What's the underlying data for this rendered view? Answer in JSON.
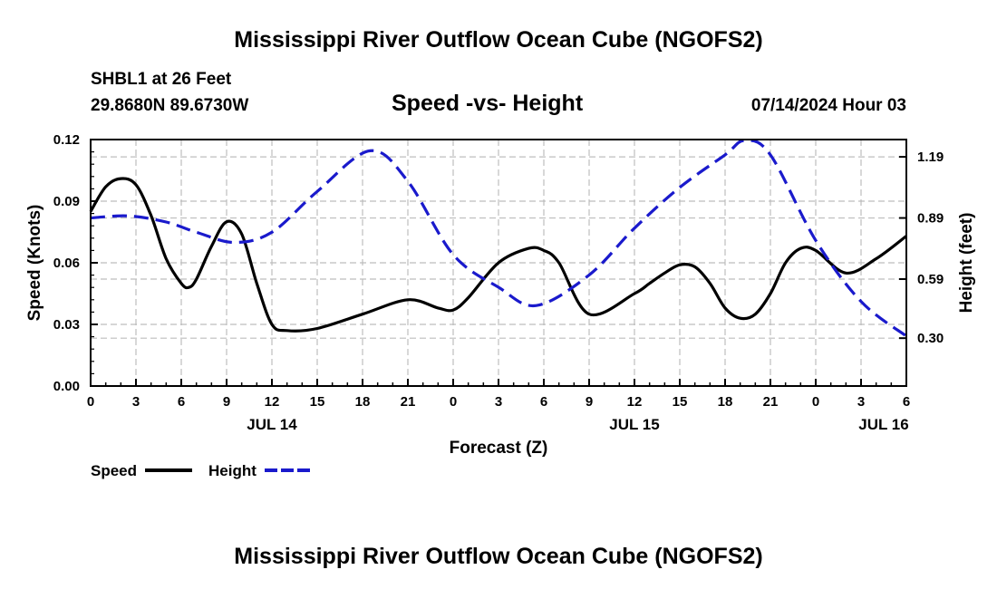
{
  "page": {
    "title_top": "Mississippi River Outflow Ocean Cube (NGOFS2)",
    "title_bottom": "Mississippi River Outflow Ocean Cube (NGOFS2)",
    "station": "SHBL1 at 26 Feet",
    "coords": "29.8680N  89.6730W",
    "subtitle": "Speed -vs- Height",
    "datetime": "07/14/2024 Hour 03"
  },
  "chart_data": {
    "type": "line",
    "xlabel": "Forecast (Z)",
    "ylabel": "Speed (Knots)",
    "y2label": "Height (feet)",
    "xlim": [
      0,
      54
    ],
    "ylim": [
      0,
      0.12
    ],
    "y2lim": [
      0.065,
      1.275
    ],
    "x_ticks": [
      0,
      3,
      6,
      9,
      12,
      15,
      18,
      21,
      24,
      27,
      30,
      33,
      36,
      39,
      42,
      45,
      48,
      51,
      54
    ],
    "x_tick_labels": [
      "0",
      "3",
      "6",
      "9",
      "12",
      "15",
      "18",
      "21",
      "0",
      "3",
      "6",
      "9",
      "12",
      "15",
      "18",
      "21",
      "0",
      "3",
      "6"
    ],
    "date_labels": [
      {
        "x": 12,
        "label": "JUL 14"
      },
      {
        "x": 36,
        "label": "JUL 15"
      },
      {
        "x": 52.5,
        "label": "JUL 16"
      }
    ],
    "y_ticks": [
      0,
      0.03,
      0.06,
      0.09,
      0.12
    ],
    "y_tick_labels": [
      "0.00",
      "0.03",
      "0.06",
      "0.09",
      "0.12"
    ],
    "y2_ticks": [
      0.3,
      0.59,
      0.89,
      1.19
    ],
    "y2_tick_labels": [
      "0.30",
      "0.59",
      "0.89",
      "1.19"
    ],
    "legend": [
      {
        "name": "Speed",
        "color": "#000000",
        "dash": "solid"
      },
      {
        "name": "Height",
        "color": "#1a1acc",
        "dash": "dashed"
      }
    ],
    "series": [
      {
        "name": "Speed",
        "axis": "left",
        "color": "#000000",
        "x": [
          0,
          1,
          2,
          3,
          4,
          5,
          6,
          6.5,
          7,
          8,
          9,
          10,
          11,
          12,
          13,
          15,
          18,
          21,
          23,
          24,
          25,
          27,
          29,
          30,
          31,
          33,
          36,
          37,
          38,
          39,
          40,
          41,
          42,
          43,
          44,
          45,
          46,
          47,
          48,
          50,
          52,
          54
        ],
        "y": [
          0.085,
          0.097,
          0.101,
          0.098,
          0.083,
          0.062,
          0.05,
          0.048,
          0.052,
          0.068,
          0.08,
          0.074,
          0.05,
          0.03,
          0.027,
          0.028,
          0.035,
          0.042,
          0.038,
          0.037,
          0.043,
          0.06,
          0.067,
          0.066,
          0.06,
          0.035,
          0.045,
          0.05,
          0.055,
          0.059,
          0.058,
          0.05,
          0.038,
          0.033,
          0.035,
          0.045,
          0.06,
          0.067,
          0.066,
          0.055,
          0.062,
          0.073
        ]
      },
      {
        "name": "Height",
        "axis": "right",
        "color": "#1a1acc",
        "x": [
          0,
          2.5,
          5,
          7,
          9.5,
          12,
          15,
          18.5,
          21,
          24,
          27,
          29.5,
          33,
          36,
          39,
          42,
          43.3,
          45,
          48,
          51,
          54
        ],
        "y": [
          0.89,
          0.9,
          0.87,
          0.82,
          0.77,
          0.82,
          1.02,
          1.22,
          1.07,
          0.71,
          0.55,
          0.46,
          0.61,
          0.84,
          1.04,
          1.2,
          1.27,
          1.2,
          0.78,
          0.48,
          0.31
        ]
      }
    ]
  }
}
